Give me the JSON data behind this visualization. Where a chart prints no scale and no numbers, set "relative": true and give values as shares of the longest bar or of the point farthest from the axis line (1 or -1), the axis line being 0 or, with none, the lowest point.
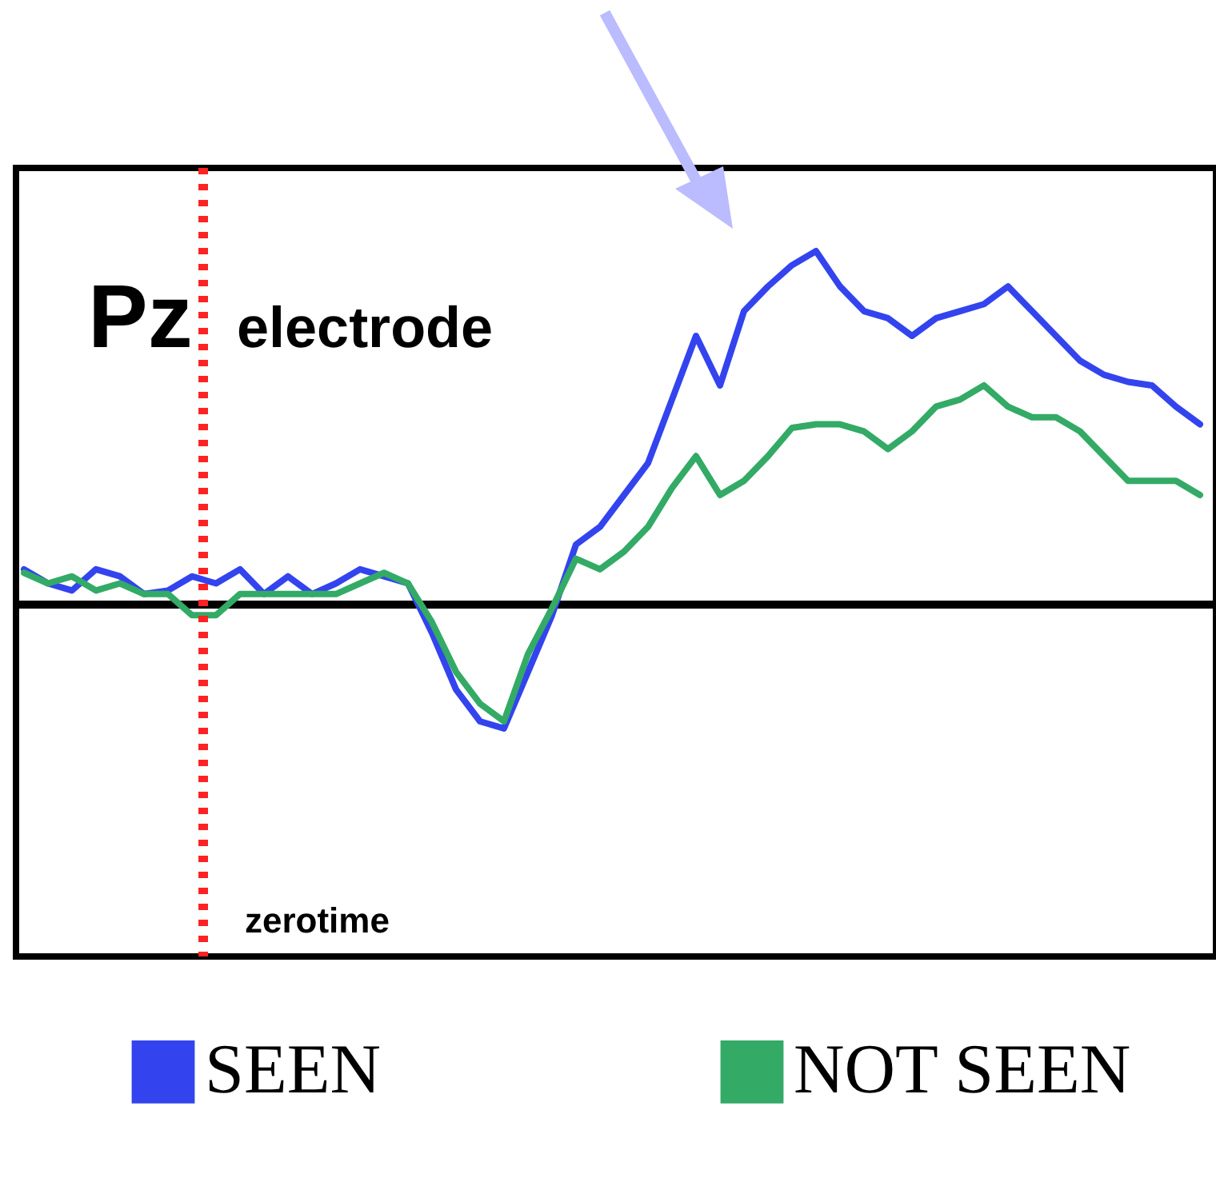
{
  "chart_data": {
    "type": "line",
    "title": "Pz",
    "subtitle": "electrode",
    "relative": true,
    "legend": "bottom",
    "marker": "none",
    "line_style": "solid",
    "annotations": [
      "zerotime"
    ],
    "categories": [
      null,
      null,
      null,
      null,
      null,
      null,
      null,
      null,
      null,
      null,
      null,
      null,
      null,
      null,
      null,
      null,
      null,
      null,
      null,
      null,
      null,
      null,
      null,
      null,
      null,
      null,
      null,
      null,
      null,
      null,
      null,
      null,
      null,
      null,
      null,
      null,
      null,
      null,
      null,
      null,
      null,
      null,
      null,
      null,
      null,
      null,
      null,
      null,
      null,
      null
    ],
    "series": [
      {
        "name": "SEEN",
        "color": "#3344ee",
        "values": [
          0.1,
          0.06,
          0.04,
          0.1,
          0.08,
          0.03,
          0.04,
          0.08,
          0.06,
          0.1,
          0.03,
          0.08,
          0.03,
          0.06,
          0.1,
          0.08,
          0.06,
          -0.08,
          -0.24,
          -0.33,
          -0.35,
          -0.19,
          -0.03,
          0.17,
          0.22,
          0.31,
          0.4,
          0.58,
          0.76,
          0.62,
          0.83,
          0.9,
          0.96,
          1,
          0.9,
          0.83,
          0.81,
          0.76,
          0.81,
          0.83,
          0.85,
          0.9,
          0.83,
          0.76,
          0.69,
          0.65,
          0.63,
          0.62,
          0.56,
          0.51
        ]
      },
      {
        "name": "NOT SEEN",
        "color": "#33aa66",
        "values": [
          0.09,
          0.06,
          0.08,
          0.04,
          0.06,
          0.03,
          0.03,
          -0.03,
          -0.03,
          0.03,
          0.03,
          0.03,
          0.03,
          0.03,
          0.06,
          0.09,
          0.06,
          -0.05,
          -0.19,
          -0.28,
          -0.33,
          -0.14,
          -0.01,
          0.13,
          0.1,
          0.15,
          0.22,
          0.33,
          0.42,
          0.31,
          0.35,
          0.42,
          0.5,
          0.51,
          0.51,
          0.49,
          0.44,
          0.49,
          0.56,
          0.58,
          0.62,
          0.56,
          0.53,
          0.53,
          0.49,
          0.42,
          0.35,
          0.35,
          0.35,
          0.31
        ]
      }
    ]
  }
}
